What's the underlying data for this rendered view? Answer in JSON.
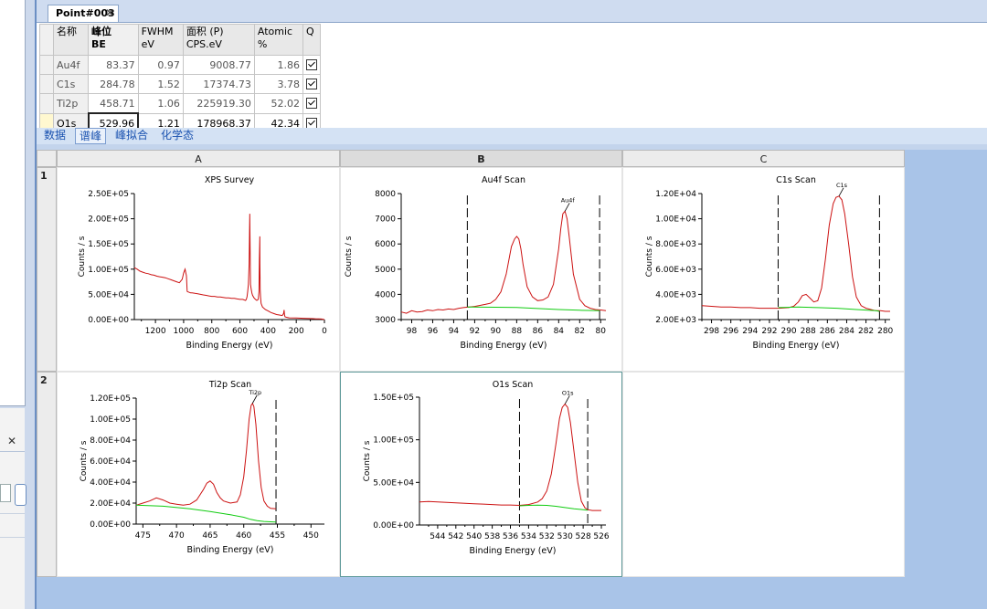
{
  "doc_tab": {
    "label": "Point#003",
    "close": "✕"
  },
  "peak_table": {
    "headers": [
      {
        "line1": "名称",
        "line2": ""
      },
      {
        "line1": "峰位",
        "line2": "BE"
      },
      {
        "line1": "FWHM",
        "line2": "eV"
      },
      {
        "line1": "面积 (P)",
        "line2": "CPS.eV"
      },
      {
        "line1": "Atomic",
        "line2": "%"
      },
      {
        "line1": "Q",
        "line2": ""
      }
    ],
    "rows": [
      {
        "name": "Au4f",
        "be": "83.37",
        "fwhm": "0.97",
        "area": "9008.77",
        "atomic": "1.86"
      },
      {
        "name": "C1s",
        "be": "284.78",
        "fwhm": "1.52",
        "area": "17374.73",
        "atomic": "3.78"
      },
      {
        "name": "Ti2p",
        "be": "458.71",
        "fwhm": "1.06",
        "area": "225919.30",
        "atomic": "52.02"
      },
      {
        "name": "O1s",
        "be": "529.96",
        "fwhm": "1.21",
        "area": "178968.37",
        "atomic": "42.34"
      }
    ]
  },
  "view_tabs": [
    "数据",
    "谱峰",
    "峰拟合",
    "化学态"
  ],
  "active_view_tab": 1,
  "grid": {
    "columns": [
      "A",
      "B",
      "C"
    ],
    "rows": [
      "1",
      "2"
    ],
    "selected_column": "B"
  },
  "colors": {
    "spectrum": "#cc1111",
    "background": "#11cc11",
    "marker": "#000000"
  },
  "chart_data": [
    {
      "type": "line",
      "title": "XPS Survey",
      "xlabel": "Binding Energy (eV)",
      "ylabel": "Counts / s",
      "xlim": [
        1350,
        0
      ],
      "ylim": [
        0,
        250000
      ],
      "xticks": [
        1200,
        1000,
        800,
        600,
        400,
        200,
        0
      ],
      "yticks": [
        0,
        50000,
        100000,
        150000,
        200000,
        250000
      ],
      "ytick_labels": [
        "0.00E+00",
        "5.00E+04",
        "1.00E+05",
        "1.50E+05",
        "2.00E+05",
        "2.50E+05"
      ],
      "series": [
        {
          "values_x": [
            1350,
            1330,
            1310,
            1290,
            1270,
            1250,
            1230,
            1210,
            1190,
            1170,
            1150,
            1130,
            1110,
            1090,
            1070,
            1050,
            1030,
            1010,
            1000,
            990,
            980,
            975,
            970,
            960,
            950,
            940,
            920,
            900,
            880,
            860,
            840,
            820,
            800,
            780,
            760,
            740,
            720,
            700,
            680,
            660,
            640,
            620,
            600,
            580,
            570,
            560,
            555,
            550,
            545,
            540,
            535,
            530,
            525,
            520,
            515,
            510,
            500,
            490,
            480,
            470,
            465,
            462,
            459,
            458,
            456,
            454,
            450,
            440,
            420,
            400,
            380,
            360,
            340,
            320,
            300,
            290,
            286,
            284,
            282,
            280,
            270,
            250,
            200,
            150,
            100,
            80,
            60,
            40,
            20,
            0
          ],
          "values_y": [
            103000,
            100000,
            96000,
            94000,
            92000,
            91000,
            89000,
            88000,
            86000,
            85000,
            84000,
            83000,
            81000,
            79000,
            77000,
            75000,
            73000,
            80000,
            92000,
            100000,
            87000,
            56000,
            55000,
            54000,
            53000,
            53000,
            52000,
            51000,
            50000,
            49000,
            48000,
            47000,
            46000,
            46000,
            45000,
            45000,
            44000,
            43000,
            43000,
            42000,
            42000,
            41000,
            40000,
            40000,
            39000,
            38000,
            40000,
            45000,
            55000,
            70000,
            110000,
            210000,
            70000,
            60000,
            52000,
            48000,
            43000,
            40000,
            38000,
            40000,
            55000,
            120000,
            165000,
            110000,
            60000,
            45000,
            32000,
            25000,
            20000,
            17000,
            14000,
            12000,
            10000,
            9000,
            8000,
            12000,
            19000,
            11000,
            7000,
            5500,
            4500,
            3500,
            3000,
            2500,
            2000,
            1800,
            1500,
            1200,
            1000,
            0
          ]
        }
      ]
    },
    {
      "type": "line",
      "title": "Au4f Scan",
      "xlabel": "Binding Energy (eV)",
      "ylabel": "Counts / s",
      "xlim": [
        99,
        79.5
      ],
      "ylim": [
        3000,
        8000
      ],
      "xticks": [
        98,
        96,
        94,
        92,
        90,
        88,
        86,
        84,
        82,
        80
      ],
      "yticks": [
        3000,
        4000,
        5000,
        6000,
        7000,
        8000
      ],
      "ytick_labels": [
        "3000",
        "4000",
        "5000",
        "6000",
        "7000",
        "8000"
      ],
      "markers": [
        92.7,
        80.1
      ],
      "peak_label": "Au4f",
      "peak_label_x": 83.4,
      "series": [
        {
          "name": "spectrum",
          "values_x": [
            99,
            98.5,
            98,
            97.5,
            97,
            96.5,
            96,
            95.5,
            95,
            94.5,
            94,
            93.5,
            93,
            92.5,
            92,
            91.5,
            91,
            90.5,
            90,
            89.5,
            89,
            88.5,
            88.2,
            88,
            87.8,
            87.6,
            87.4,
            87,
            86.5,
            86,
            85.5,
            85,
            84.5,
            84,
            83.8,
            83.6,
            83.4,
            83.2,
            83,
            82.6,
            82,
            81.5,
            81,
            80.5,
            80,
            79.5
          ],
          "values_y": [
            3300,
            3250,
            3350,
            3300,
            3320,
            3380,
            3350,
            3400,
            3380,
            3420,
            3400,
            3450,
            3480,
            3500,
            3520,
            3560,
            3600,
            3650,
            3800,
            4100,
            4800,
            5900,
            6200,
            6300,
            6200,
            5800,
            5200,
            4300,
            3900,
            3750,
            3780,
            3900,
            4400,
            5800,
            6600,
            7200,
            7300,
            7000,
            6300,
            4800,
            3800,
            3550,
            3450,
            3400,
            3380,
            3350
          ]
        },
        {
          "name": "background",
          "values_x": [
            92.7,
            90,
            88,
            86,
            84,
            82,
            80.1
          ],
          "values_y": [
            3500,
            3490,
            3480,
            3440,
            3400,
            3370,
            3350
          ]
        }
      ]
    },
    {
      "type": "line",
      "title": "C1s Scan",
      "xlabel": "Binding Energy (eV)",
      "ylabel": "Counts / s",
      "xlim": [
        299,
        279.5
      ],
      "ylim": [
        2000,
        12000
      ],
      "xticks": [
        298,
        296,
        294,
        292,
        290,
        288,
        286,
        284,
        282,
        280
      ],
      "yticks": [
        2000,
        4000,
        6000,
        8000,
        10000,
        12000
      ],
      "ytick_labels": [
        "2.00E+03",
        "4.00E+03",
        "6.00E+03",
        "8.00E+03",
        "1.00E+04",
        "1.20E+04"
      ],
      "markers": [
        291.1,
        280.6
      ],
      "peak_label": "C1s",
      "peak_label_x": 284.8,
      "series": [
        {
          "name": "spectrum",
          "values_x": [
            299,
            298,
            297,
            296,
            295,
            294,
            293,
            292,
            291,
            290,
            289.5,
            289,
            288.6,
            288.2,
            287.8,
            287.4,
            287,
            286.6,
            286.2,
            285.8,
            285.4,
            285.1,
            284.8,
            284.5,
            284.2,
            283.8,
            283.4,
            283,
            282.5,
            282,
            281.5,
            281,
            280.5,
            280,
            279.5
          ],
          "values_y": [
            3100,
            3050,
            3000,
            3000,
            2950,
            2950,
            2900,
            2900,
            2900,
            2950,
            3050,
            3400,
            3900,
            4000,
            3700,
            3400,
            3500,
            4500,
            6800,
            9500,
            11200,
            11700,
            11800,
            11500,
            10400,
            8000,
            5400,
            3800,
            3100,
            2900,
            2800,
            2700,
            2700,
            2650,
            2650
          ]
        },
        {
          "name": "background",
          "values_x": [
            291.1,
            289,
            287,
            285,
            283,
            281,
            280.6
          ],
          "values_y": [
            2950,
            3000,
            2950,
            2900,
            2800,
            2700,
            2650
          ]
        }
      ]
    },
    {
      "type": "line",
      "title": "Ti2p Scan",
      "xlabel": "Binding Energy (eV)",
      "ylabel": "Counts / s",
      "xlim": [
        476,
        448
      ],
      "ylim": [
        0,
        120000
      ],
      "xticks": [
        475,
        470,
        465,
        460,
        455,
        450
      ],
      "yticks": [
        0,
        20000,
        40000,
        60000,
        80000,
        100000,
        120000
      ],
      "ytick_labels": [
        "0.00E+00",
        "2.00E+04",
        "4.00E+04",
        "6.00E+04",
        "8.00E+04",
        "1.00E+05",
        "1.20E+05"
      ],
      "markers": [
        455.2
      ],
      "peak_label": "Ti2p",
      "peak_label_x": 458.7,
      "series": [
        {
          "name": "spectrum",
          "values_x": [
            476,
            475,
            474,
            473,
            472,
            471,
            470,
            469,
            468,
            467,
            466,
            465.5,
            465,
            464.5,
            464,
            463.5,
            463,
            462,
            461,
            460.5,
            460,
            459.6,
            459.2,
            458.9,
            458.7,
            458.5,
            458.2,
            457.8,
            457.4,
            457,
            456.5,
            456,
            455.2
          ],
          "values_y": [
            18000,
            20000,
            22000,
            25000,
            23000,
            20000,
            19000,
            18000,
            19000,
            23000,
            33000,
            39000,
            41000,
            38000,
            30000,
            25000,
            22000,
            20000,
            21000,
            28000,
            45000,
            70000,
            100000,
            113000,
            115000,
            112000,
            95000,
            60000,
            35000,
            22000,
            17000,
            15000,
            14500
          ]
        },
        {
          "name": "background",
          "values_x": [
            476,
            472,
            468,
            465,
            462,
            460,
            459,
            458,
            457,
            456,
            455.2
          ],
          "values_y": [
            18000,
            17000,
            14500,
            12000,
            9000,
            6500,
            4500,
            3200,
            2500,
            2200,
            2000
          ]
        }
      ]
    },
    {
      "type": "line",
      "title": "O1s Scan",
      "xlabel": "Binding Energy (eV)",
      "ylabel": "Counts / s",
      "xlim": [
        546,
        525.5
      ],
      "ylim": [
        0,
        150000
      ],
      "xticks": [
        544,
        542,
        540,
        538,
        536,
        534,
        532,
        530,
        528,
        526
      ],
      "yticks": [
        0,
        50000,
        100000,
        150000
      ],
      "ytick_labels": [
        "0.00E+00",
        "5.00E+04",
        "1.00E+05",
        "1.50E+05"
      ],
      "markers": [
        535,
        527.5
      ],
      "peak_label": "O1s",
      "peak_label_x": 530,
      "series": [
        {
          "name": "spectrum",
          "values_x": [
            546,
            545,
            544,
            543,
            542,
            541,
            540,
            539,
            538,
            537,
            536,
            535,
            534,
            533,
            532.5,
            532,
            531.5,
            531,
            530.6,
            530.3,
            530,
            529.7,
            529.4,
            529,
            528.6,
            528.2,
            527.8,
            527.5,
            527,
            526.5,
            526
          ],
          "values_y": [
            27000,
            27500,
            27000,
            26500,
            26000,
            25500,
            25000,
            24500,
            24000,
            23500,
            23500,
            23000,
            24000,
            27000,
            31000,
            40000,
            60000,
            95000,
            125000,
            138000,
            142000,
            138000,
            120000,
            85000,
            50000,
            28000,
            20000,
            18000,
            17000,
            17000,
            17000
          ]
        },
        {
          "name": "background",
          "values_x": [
            535,
            534,
            533,
            532,
            531,
            530,
            529,
            528,
            527.5
          ],
          "values_y": [
            22500,
            23000,
            23200,
            23000,
            22000,
            20500,
            19000,
            18000,
            17500
          ]
        }
      ]
    }
  ]
}
